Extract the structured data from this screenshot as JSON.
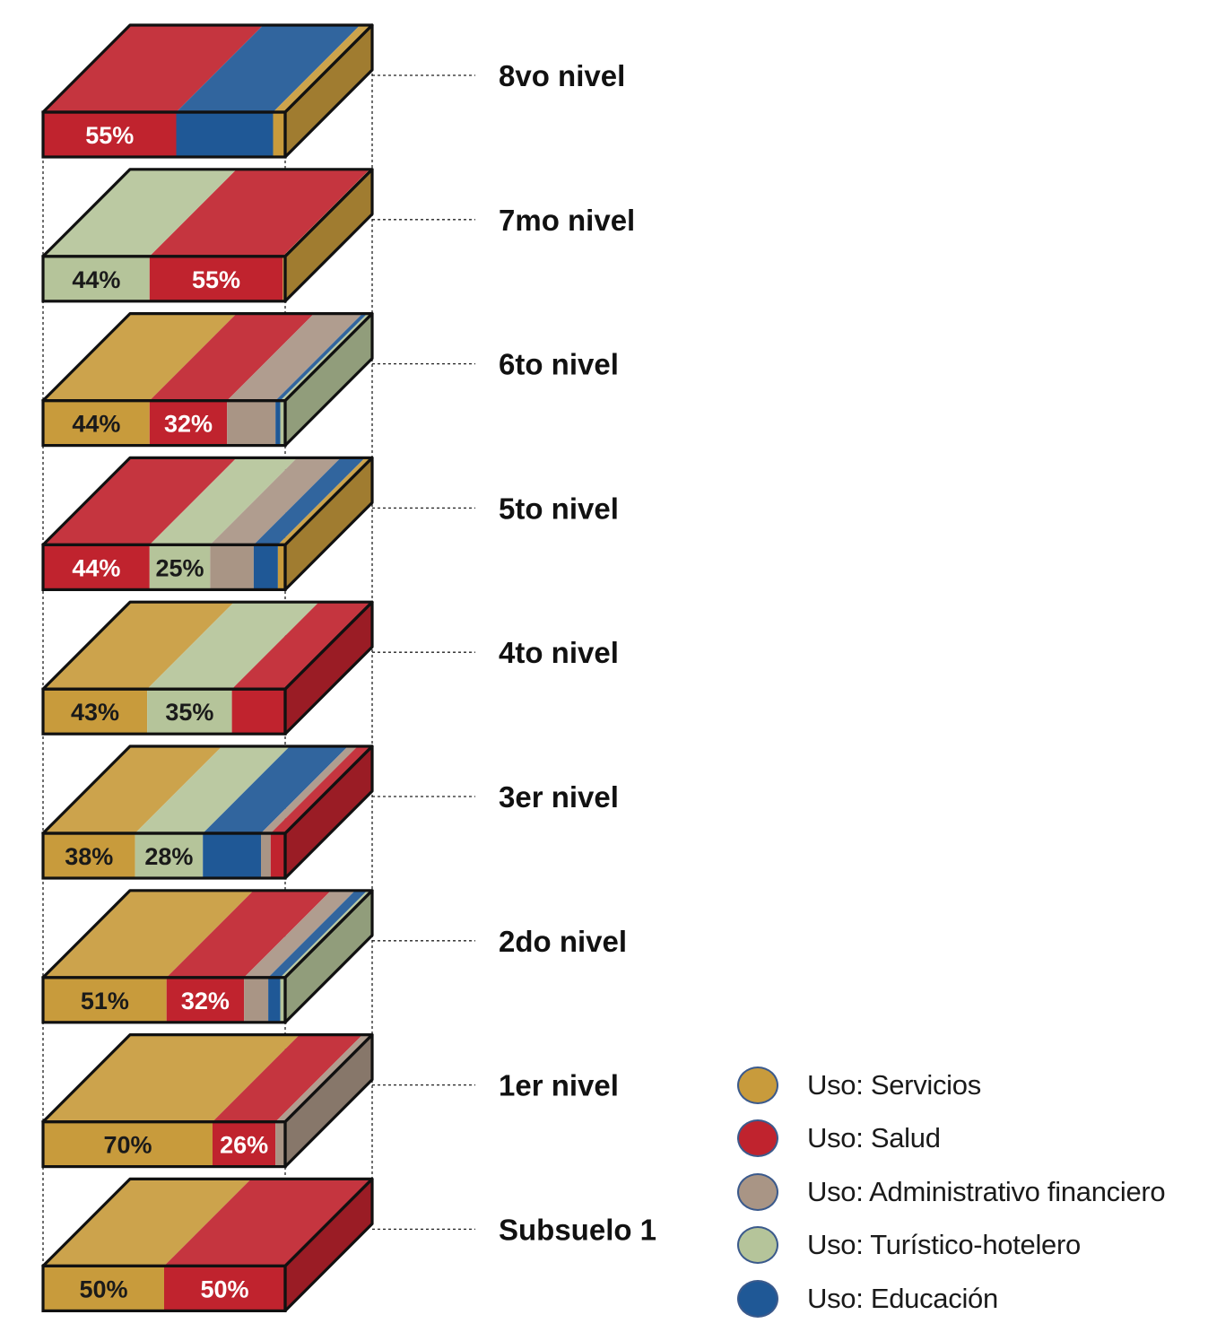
{
  "colors": {
    "servicios": "#C89B3C",
    "salud": "#C0232E",
    "administrativo": "#A99585",
    "turistico": "#B5C49A",
    "educacion": "#1F5896"
  },
  "levels": [
    {
      "label": "8vo nivel",
      "segments": [
        {
          "use": "salud",
          "value": 55,
          "text": "55%"
        },
        {
          "use": "educacion",
          "value": 40,
          "text": ""
        },
        {
          "use": "servicios",
          "value": 5,
          "text": ""
        }
      ]
    },
    {
      "label": "7mo nivel",
      "segments": [
        {
          "use": "turistico",
          "value": 44,
          "text": "44%"
        },
        {
          "use": "salud",
          "value": 55,
          "text": "55%"
        },
        {
          "use": "servicios",
          "value": 1,
          "text": ""
        }
      ]
    },
    {
      "label": "6to nivel",
      "segments": [
        {
          "use": "servicios",
          "value": 44,
          "text": "44%"
        },
        {
          "use": "salud",
          "value": 32,
          "text": "32%"
        },
        {
          "use": "administrativo",
          "value": 20,
          "text": ""
        },
        {
          "use": "educacion",
          "value": 2,
          "text": ""
        },
        {
          "use": "turistico",
          "value": 2,
          "text": ""
        }
      ]
    },
    {
      "label": "5to nivel",
      "segments": [
        {
          "use": "salud",
          "value": 44,
          "text": "44%"
        },
        {
          "use": "turistico",
          "value": 25,
          "text": "25%"
        },
        {
          "use": "administrativo",
          "value": 18,
          "text": ""
        },
        {
          "use": "educacion",
          "value": 10,
          "text": ""
        },
        {
          "use": "servicios",
          "value": 3,
          "text": ""
        }
      ]
    },
    {
      "label": "4to nivel",
      "segments": [
        {
          "use": "servicios",
          "value": 43,
          "text": "43%"
        },
        {
          "use": "turistico",
          "value": 35,
          "text": "35%"
        },
        {
          "use": "salud",
          "value": 22,
          "text": ""
        }
      ]
    },
    {
      "label": "3er nivel",
      "segments": [
        {
          "use": "servicios",
          "value": 38,
          "text": "38%"
        },
        {
          "use": "turistico",
          "value": 28,
          "text": "28%"
        },
        {
          "use": "educacion",
          "value": 24,
          "text": ""
        },
        {
          "use": "administrativo",
          "value": 4,
          "text": ""
        },
        {
          "use": "salud",
          "value": 6,
          "text": ""
        }
      ]
    },
    {
      "label": "2do nivel",
      "segments": [
        {
          "use": "servicios",
          "value": 51,
          "text": "51%"
        },
        {
          "use": "salud",
          "value": 32,
          "text": "32%"
        },
        {
          "use": "administrativo",
          "value": 10,
          "text": ""
        },
        {
          "use": "educacion",
          "value": 5,
          "text": ""
        },
        {
          "use": "turistico",
          "value": 2,
          "text": ""
        }
      ]
    },
    {
      "label": "1er nivel",
      "segments": [
        {
          "use": "servicios",
          "value": 70,
          "text": "70%"
        },
        {
          "use": "salud",
          "value": 26,
          "text": "26%"
        },
        {
          "use": "administrativo",
          "value": 4,
          "text": ""
        }
      ]
    },
    {
      "label": "Subsuelo 1",
      "segments": [
        {
          "use": "servicios",
          "value": 50,
          "text": "50%"
        },
        {
          "use": "salud",
          "value": 50,
          "text": "50%"
        }
      ]
    }
  ],
  "legend": [
    {
      "use": "servicios",
      "label": "Uso: Servicios"
    },
    {
      "use": "salud",
      "label": "Uso: Salud"
    },
    {
      "use": "administrativo",
      "label": "Uso: Administrativo financiero"
    },
    {
      "use": "turistico",
      "label": "Uso: Turístico-hotelero"
    },
    {
      "use": "educacion",
      "label": "Uso: Educación"
    }
  ]
}
